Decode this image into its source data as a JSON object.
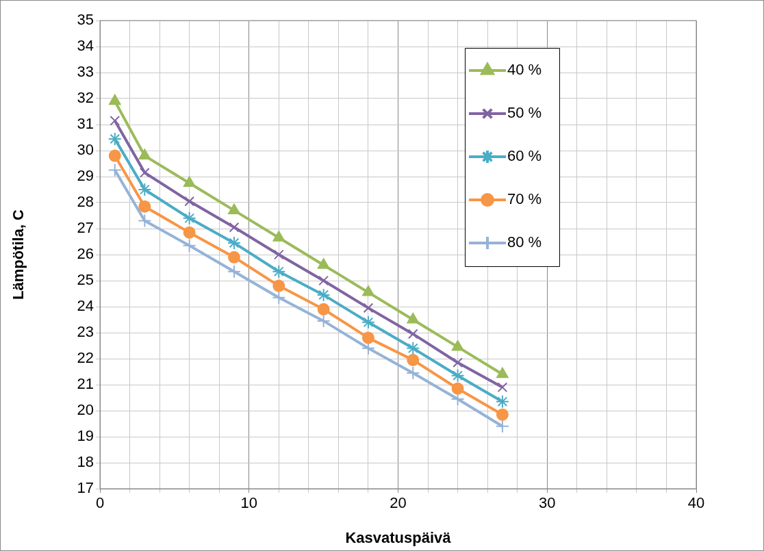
{
  "chart_data": {
    "type": "line",
    "xlabel": "Kasvatuspäivä",
    "ylabel": "Lämpötila, C",
    "x": [
      1,
      3,
      6,
      9,
      12,
      15,
      18,
      21,
      24,
      27
    ],
    "series": [
      {
        "name": "40 %",
        "color": "#9bbb59",
        "marker": "triangle",
        "values": [
          31.9,
          29.8,
          28.75,
          27.7,
          26.65,
          25.6,
          24.55,
          23.5,
          22.45,
          21.4
        ]
      },
      {
        "name": "50 %",
        "color": "#8064a2",
        "marker": "x",
        "values": [
          31.15,
          29.15,
          28.05,
          27.05,
          26.0,
          25.0,
          23.95,
          22.95,
          21.85,
          20.9
        ]
      },
      {
        "name": "60 %",
        "color": "#4bacc6",
        "marker": "cross",
        "values": [
          30.45,
          28.5,
          27.4,
          26.45,
          25.35,
          24.45,
          23.4,
          22.4,
          21.35,
          20.35
        ]
      },
      {
        "name": "70 %",
        "color": "#f79646",
        "marker": "circle",
        "values": [
          29.8,
          27.85,
          26.85,
          25.9,
          24.8,
          23.9,
          22.8,
          21.95,
          20.85,
          19.85
        ]
      },
      {
        "name": "80 %",
        "color": "#95b3d7",
        "marker": "plus",
        "values": [
          29.25,
          27.3,
          26.35,
          25.35,
          24.35,
          23.45,
          22.4,
          21.45,
          20.45,
          19.4
        ]
      }
    ],
    "xlim": [
      0,
      40
    ],
    "xticks": [
      0,
      {
        "value": 2,
        "label": null
      },
      {
        "value": 4,
        "label": null
      },
      {
        "value": 6,
        "label": null
      },
      {
        "value": 8,
        "label": null
      },
      10,
      {
        "value": 12,
        "label": null
      },
      {
        "value": 14,
        "label": null
      },
      {
        "value": 16,
        "label": null
      },
      {
        "value": 18,
        "label": null
      },
      20,
      {
        "value": 22,
        "label": null
      },
      {
        "value": 24,
        "label": null
      },
      {
        "value": 26,
        "label": null
      },
      {
        "value": 28,
        "label": null
      },
      30,
      {
        "value": 32,
        "label": null
      },
      {
        "value": 34,
        "label": null
      },
      {
        "value": 36,
        "label": null
      },
      {
        "value": 38,
        "label": null
      },
      40
    ],
    "ylim": [
      17,
      35
    ],
    "yticks": [
      17,
      18,
      19,
      20,
      21,
      22,
      23,
      24,
      25,
      26,
      27,
      28,
      29,
      30,
      31,
      32,
      33,
      34,
      35
    ],
    "grid": true,
    "legend": "top right",
    "line_style": "solid"
  }
}
